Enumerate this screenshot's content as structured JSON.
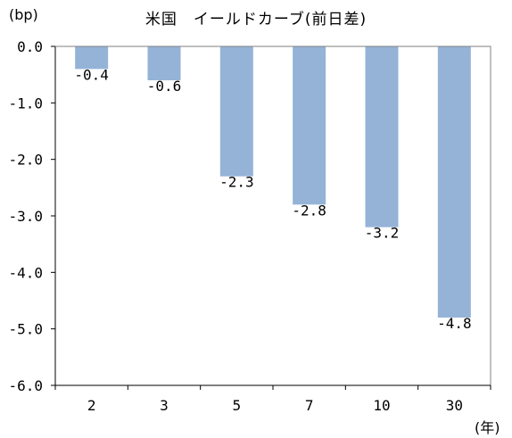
{
  "chart_data": {
    "type": "bar",
    "title": "米国　イールドカーブ(前日差)",
    "ylabel": "(bp)",
    "xlabel": "(年)",
    "categories": [
      "2",
      "3",
      "5",
      "7",
      "10",
      "30"
    ],
    "values": [
      -0.4,
      -0.6,
      -2.3,
      -2.8,
      -3.2,
      -4.8
    ],
    "data_labels": [
      "-0.4",
      "-0.6",
      "-2.3",
      "-2.8",
      "-3.2",
      "-4.8"
    ],
    "ylim": [
      -6.0,
      0.0
    ],
    "yticks": [
      0.0,
      -1.0,
      -2.0,
      -3.0,
      -4.0,
      -5.0,
      -6.0
    ],
    "ytick_labels": [
      "0.0",
      "-1.0",
      "-2.0",
      "-3.0",
      "-4.0",
      "-5.0",
      "-6.0"
    ],
    "grid": false,
    "bar_color": "#95b3d7"
  }
}
